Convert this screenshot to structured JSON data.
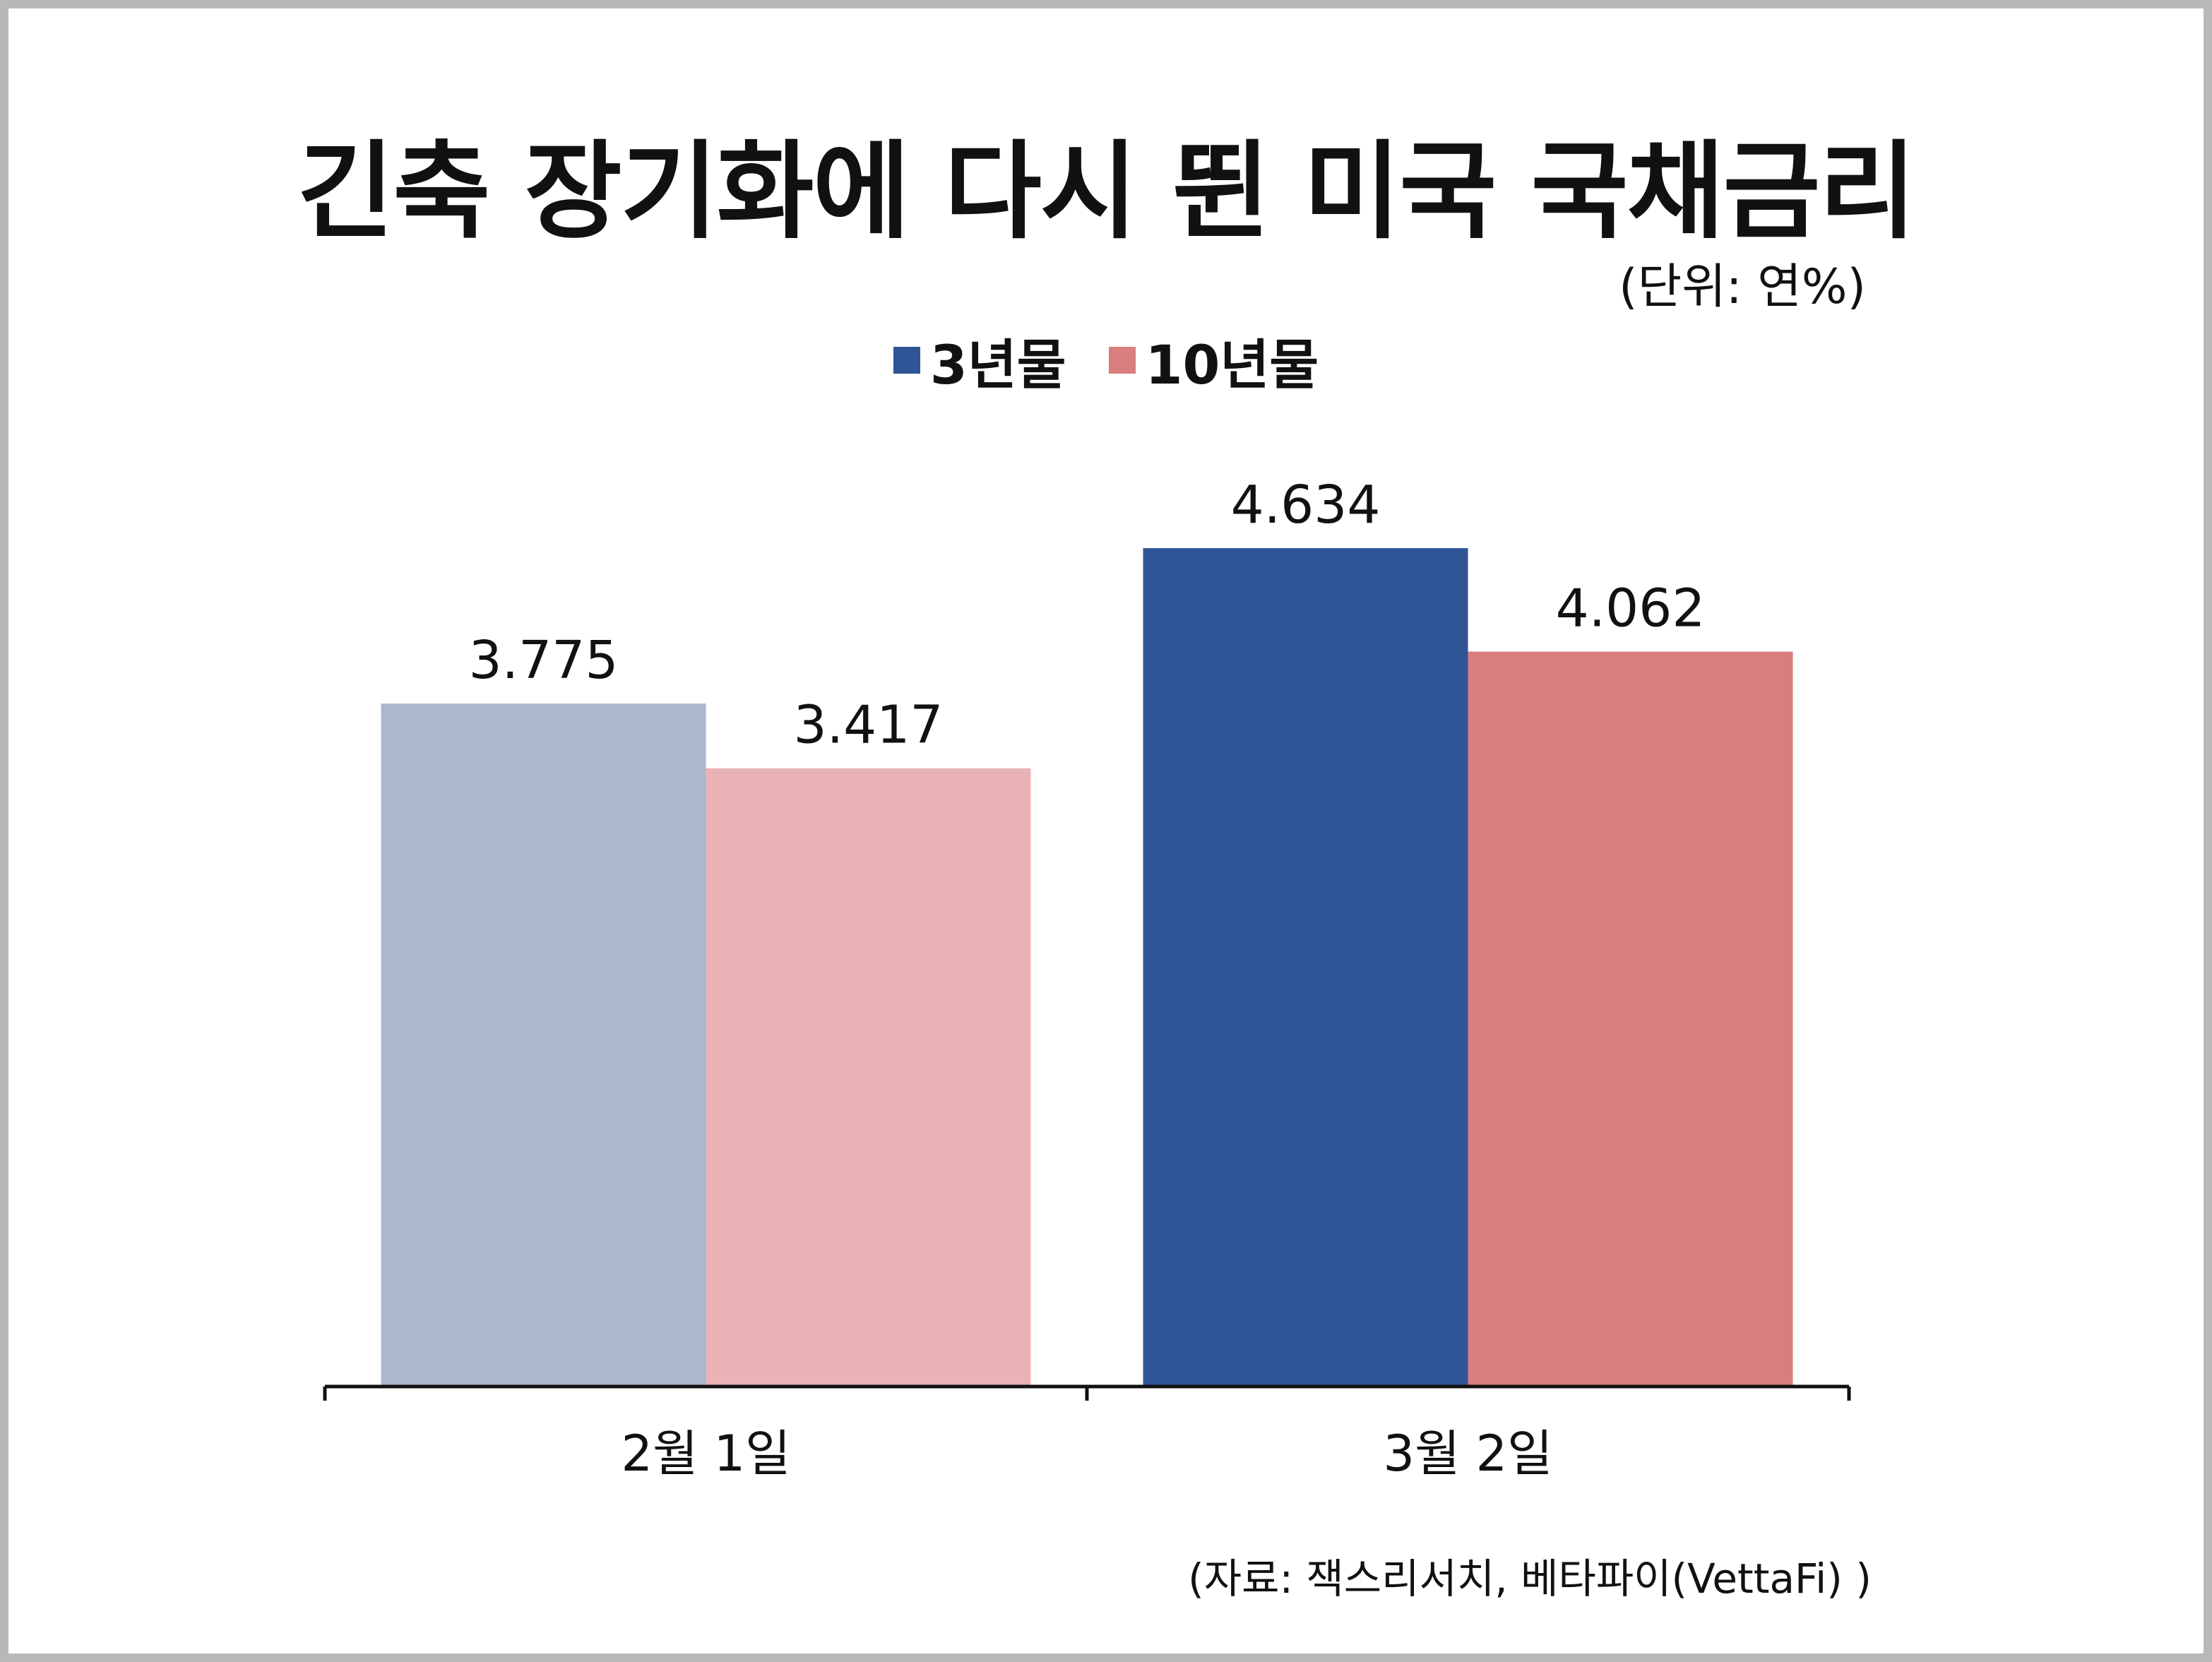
{
  "chart_data": {
    "type": "bar",
    "title": "긴축 장기화에 다시 뛴 미국 국채금리",
    "unit_note": "(단위: 연%)",
    "source": "(자료: 잭스리서치, 베타파이(VettaFi) )",
    "categories": [
      "2월 1일",
      "3월 2일"
    ],
    "series": [
      {
        "name": "3년물",
        "values": [
          3.775,
          4.634
        ],
        "labels": [
          "3.775",
          "4.634"
        ],
        "colors": [
          "#abb7cb",
          "#2f5597"
        ]
      },
      {
        "name": "10년물",
        "values": [
          3.417,
          4.062
        ],
        "labels": [
          "3.417",
          "4.062"
        ],
        "colors": [
          "#e9b3b6",
          "#d97e7e"
        ]
      }
    ],
    "legend_colors": [
      "#2f5597",
      "#d97e7e"
    ],
    "legend_position": "top-center",
    "ylim": [
      0,
      4.634
    ],
    "grid": false
  }
}
